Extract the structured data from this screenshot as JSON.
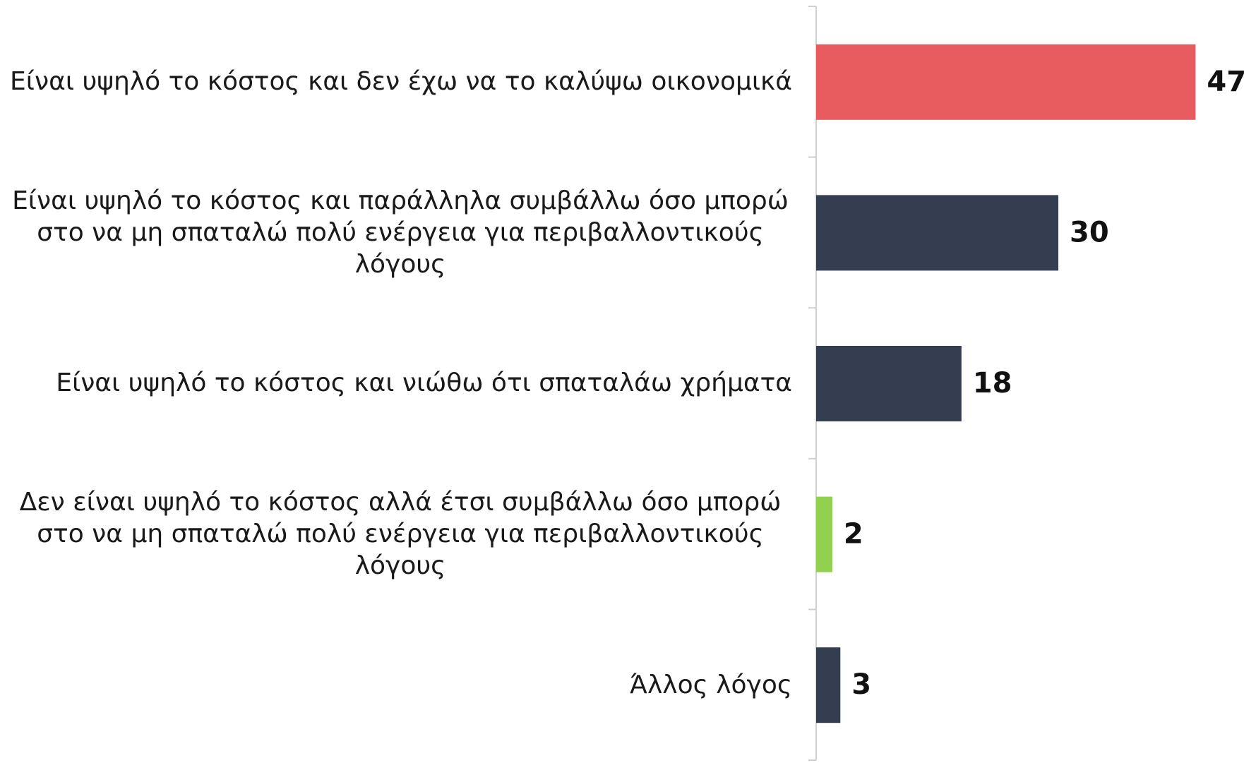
{
  "chart_data": {
    "type": "bar",
    "orientation": "horizontal",
    "categories": [
      "Είναι υψηλό το κόστος και δεν έχω να το καλύψω οικονομικά",
      "Είναι υψηλό το κόστος και παράλληλα συμβάλλω όσο μπορώ στο να μη σπαταλώ πολύ ενέργεια για περιβαλλοντικούς λόγους",
      "Είναι υψηλό το κόστος και νιώθω ότι σπαταλάω χρήματα",
      "Δεν είναι υψηλό το κόστος αλλά έτσι συμβάλλω όσο μπορώ στο να μη σπαταλώ πολύ ενέργεια για περιβαλλοντικούς λόγους",
      "Άλλος λόγος"
    ],
    "values": [
      47,
      30,
      18,
      2,
      3
    ],
    "colors": [
      "#e85c5f",
      "#343e50",
      "#343e50",
      "#92d050",
      "#343e50"
    ],
    "xlim": [
      0,
      53
    ]
  }
}
